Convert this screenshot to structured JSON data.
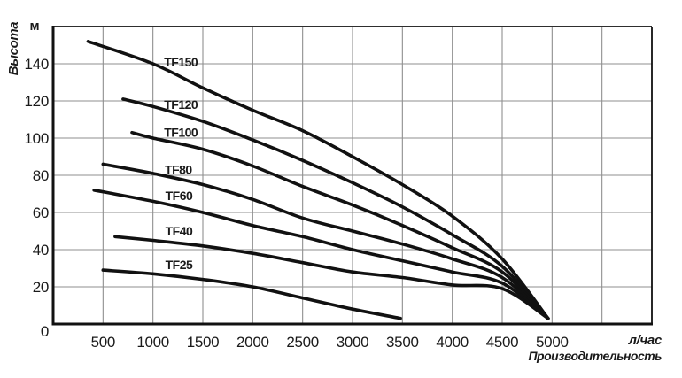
{
  "chart_data": {
    "type": "line",
    "title": "",
    "x_axis": {
      "title": "Производительность",
      "unit": "л/час",
      "min": 0,
      "max": 6000,
      "grid_step": 500,
      "tick_labels": [
        500,
        1000,
        1500,
        2000,
        2500,
        3000,
        3500,
        4000,
        4500,
        5000
      ]
    },
    "y_axis": {
      "title": "Высота",
      "unit": "м",
      "min": 0,
      "max": 160,
      "grid_step": 20,
      "tick_labels": [
        0,
        20,
        40,
        60,
        80,
        100,
        120,
        140
      ]
    },
    "legend_position": "inline-labels-above-curves",
    "grid": true,
    "series": [
      {
        "name": "TF150",
        "label_at": [
          1280,
          141
        ],
        "points": [
          [
            350,
            152
          ],
          [
            1000,
            140
          ],
          [
            1500,
            127
          ],
          [
            2000,
            115
          ],
          [
            2500,
            104
          ],
          [
            3000,
            90
          ],
          [
            3500,
            75
          ],
          [
            4000,
            58
          ],
          [
            4500,
            35
          ],
          [
            4960,
            3
          ]
        ]
      },
      {
        "name": "TF120",
        "label_at": [
          1280,
          118
        ],
        "points": [
          [
            700,
            121
          ],
          [
            1000,
            117
          ],
          [
            1500,
            109
          ],
          [
            2000,
            99
          ],
          [
            2500,
            88
          ],
          [
            3000,
            76
          ],
          [
            3500,
            63
          ],
          [
            4000,
            48
          ],
          [
            4500,
            31
          ],
          [
            4960,
            3
          ]
        ]
      },
      {
        "name": "TF100",
        "label_at": [
          1280,
          103
        ],
        "points": [
          [
            790,
            103
          ],
          [
            1000,
            100
          ],
          [
            1500,
            94
          ],
          [
            2000,
            85
          ],
          [
            2500,
            74
          ],
          [
            3000,
            64
          ],
          [
            3500,
            53
          ],
          [
            4000,
            41
          ],
          [
            4500,
            28
          ],
          [
            4960,
            3
          ]
        ]
      },
      {
        "name": "TF80",
        "label_at": [
          1255,
          83
        ],
        "points": [
          [
            500,
            86
          ],
          [
            1000,
            81
          ],
          [
            1500,
            75
          ],
          [
            2000,
            67
          ],
          [
            2500,
            57
          ],
          [
            3000,
            50
          ],
          [
            3500,
            43
          ],
          [
            4000,
            35
          ],
          [
            4500,
            25
          ],
          [
            4960,
            3
          ]
        ]
      },
      {
        "name": "TF60",
        "label_at": [
          1260,
          69
        ],
        "points": [
          [
            410,
            72
          ],
          [
            1000,
            66
          ],
          [
            1500,
            60
          ],
          [
            2000,
            53
          ],
          [
            2500,
            47
          ],
          [
            3000,
            40
          ],
          [
            3500,
            34
          ],
          [
            4000,
            28
          ],
          [
            4500,
            22
          ],
          [
            4960,
            3
          ]
        ]
      },
      {
        "name": "TF40",
        "label_at": [
          1260,
          50
        ],
        "points": [
          [
            620,
            47
          ],
          [
            1000,
            45
          ],
          [
            1500,
            42
          ],
          [
            2000,
            38
          ],
          [
            2500,
            33
          ],
          [
            3000,
            28
          ],
          [
            3500,
            25
          ],
          [
            4000,
            21
          ],
          [
            4500,
            19
          ],
          [
            4960,
            3
          ]
        ]
      },
      {
        "name": "TF25",
        "label_at": [
          1260,
          32
        ],
        "points": [
          [
            500,
            29
          ],
          [
            1000,
            27
          ],
          [
            1500,
            24
          ],
          [
            2000,
            20
          ],
          [
            2500,
            14
          ],
          [
            3000,
            8
          ],
          [
            3480,
            3
          ]
        ]
      }
    ],
    "styles": {
      "background": "#ffffff",
      "curve_color": "#111111",
      "grid_color": "#8f8f8f",
      "axis_color": "#111111",
      "text_color": "#1a1a1a"
    }
  }
}
